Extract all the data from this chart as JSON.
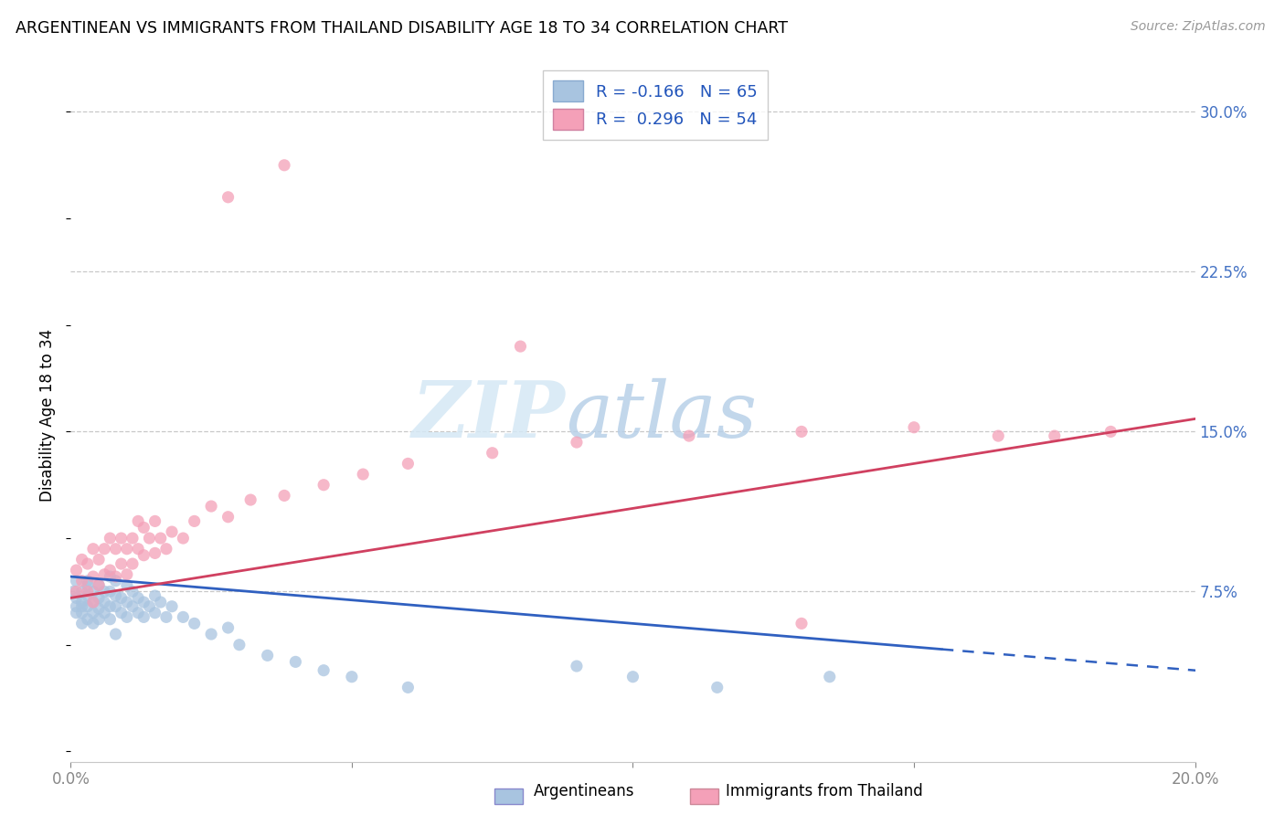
{
  "title": "ARGENTINEAN VS IMMIGRANTS FROM THAILAND DISABILITY AGE 18 TO 34 CORRELATION CHART",
  "source": "Source: ZipAtlas.com",
  "ylabel": "Disability Age 18 to 34",
  "xlim": [
    0.0,
    0.2
  ],
  "ylim": [
    -0.005,
    0.32
  ],
  "ytick_vals": [
    0.075,
    0.15,
    0.225,
    0.3
  ],
  "ytick_labels": [
    "7.5%",
    "15.0%",
    "22.5%",
    "30.0%"
  ],
  "watermark": "ZIPatlas",
  "legend_R_blue": "-0.166",
  "legend_N_blue": "65",
  "legend_R_pink": "0.296",
  "legend_N_pink": "54",
  "blue_scatter_color": "#a8c4e0",
  "pink_scatter_color": "#f4a0b8",
  "blue_line_color": "#3060c0",
  "pink_line_color": "#d04060",
  "blue_line_intercept": 0.082,
  "blue_line_slope": -0.22,
  "pink_line_intercept": 0.072,
  "pink_line_slope": 0.42,
  "arg_x": [
    0.0005,
    0.001,
    0.001,
    0.001,
    0.001,
    0.002,
    0.002,
    0.002,
    0.002,
    0.002,
    0.003,
    0.003,
    0.003,
    0.003,
    0.003,
    0.004,
    0.004,
    0.004,
    0.004,
    0.005,
    0.005,
    0.005,
    0.005,
    0.006,
    0.006,
    0.006,
    0.007,
    0.007,
    0.007,
    0.007,
    0.008,
    0.008,
    0.008,
    0.008,
    0.009,
    0.009,
    0.01,
    0.01,
    0.01,
    0.011,
    0.011,
    0.012,
    0.012,
    0.013,
    0.013,
    0.014,
    0.015,
    0.015,
    0.016,
    0.017,
    0.018,
    0.02,
    0.022,
    0.025,
    0.028,
    0.03,
    0.035,
    0.04,
    0.045,
    0.05,
    0.06,
    0.09,
    0.1,
    0.115,
    0.135
  ],
  "arg_y": [
    0.075,
    0.072,
    0.068,
    0.065,
    0.08,
    0.07,
    0.065,
    0.06,
    0.075,
    0.068,
    0.08,
    0.073,
    0.068,
    0.062,
    0.078,
    0.075,
    0.07,
    0.065,
    0.06,
    0.078,
    0.072,
    0.067,
    0.062,
    0.075,
    0.07,
    0.065,
    0.082,
    0.075,
    0.068,
    0.062,
    0.08,
    0.073,
    0.068,
    0.055,
    0.072,
    0.065,
    0.078,
    0.07,
    0.063,
    0.075,
    0.068,
    0.072,
    0.065,
    0.07,
    0.063,
    0.068,
    0.073,
    0.065,
    0.07,
    0.063,
    0.068,
    0.063,
    0.06,
    0.055,
    0.058,
    0.05,
    0.045,
    0.042,
    0.038,
    0.035,
    0.03,
    0.04,
    0.035,
    0.03,
    0.035
  ],
  "thai_x": [
    0.001,
    0.001,
    0.002,
    0.002,
    0.003,
    0.003,
    0.004,
    0.004,
    0.004,
    0.005,
    0.005,
    0.006,
    0.006,
    0.007,
    0.007,
    0.008,
    0.008,
    0.009,
    0.009,
    0.01,
    0.01,
    0.011,
    0.011,
    0.012,
    0.012,
    0.013,
    0.013,
    0.014,
    0.015,
    0.015,
    0.016,
    0.017,
    0.018,
    0.02,
    0.022,
    0.025,
    0.028,
    0.032,
    0.038,
    0.045,
    0.052,
    0.06,
    0.075,
    0.09,
    0.11,
    0.13,
    0.15,
    0.165,
    0.175,
    0.185,
    0.028,
    0.038,
    0.08,
    0.13
  ],
  "thai_y": [
    0.085,
    0.075,
    0.09,
    0.08,
    0.088,
    0.075,
    0.095,
    0.082,
    0.07,
    0.09,
    0.078,
    0.095,
    0.083,
    0.1,
    0.085,
    0.095,
    0.082,
    0.1,
    0.088,
    0.095,
    0.083,
    0.1,
    0.088,
    0.108,
    0.095,
    0.105,
    0.092,
    0.1,
    0.108,
    0.093,
    0.1,
    0.095,
    0.103,
    0.1,
    0.108,
    0.115,
    0.11,
    0.118,
    0.12,
    0.125,
    0.13,
    0.135,
    0.14,
    0.145,
    0.148,
    0.15,
    0.152,
    0.148,
    0.148,
    0.15,
    0.26,
    0.275,
    0.19,
    0.06
  ]
}
